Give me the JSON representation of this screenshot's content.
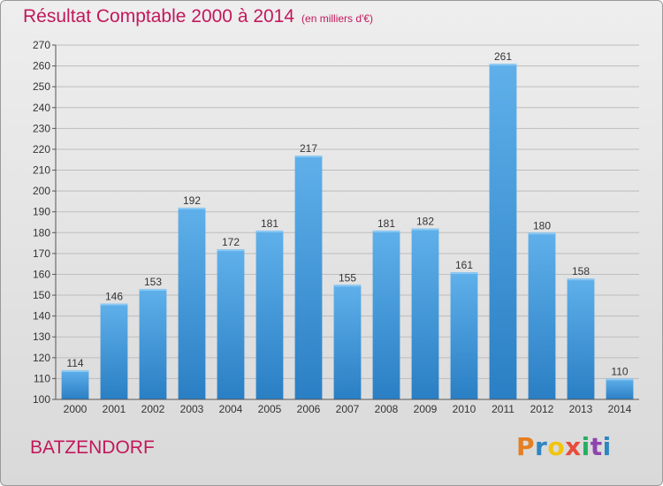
{
  "header": {
    "title": "Résultat Comptable 2000 à 2014",
    "subtitle": "(en milliers d'€)"
  },
  "footer": {
    "commune": "BATZENDORF",
    "logo_letters": [
      "P",
      "r",
      "o",
      "x",
      "i",
      "t",
      "i"
    ],
    "logo_colors": [
      "#e67e22",
      "#2e86c1",
      "#f1c40f",
      "#e74c3c",
      "#27ae60",
      "#8e44ad",
      "#2e86c1"
    ]
  },
  "colors": {
    "bar_top": "#5fb0ea",
    "bar_bottom": "#2a7fc4",
    "title": "#c2185b",
    "grid": "#bdbdbd",
    "text": "#333333"
  },
  "chart_data": {
    "type": "bar",
    "categories": [
      "2000",
      "2001",
      "2002",
      "2003",
      "2004",
      "2005",
      "2006",
      "2007",
      "2008",
      "2009",
      "2010",
      "2011",
      "2012",
      "2013",
      "2014"
    ],
    "values": [
      114,
      146,
      153,
      192,
      172,
      181,
      217,
      155,
      181,
      182,
      161,
      261,
      180,
      158,
      110
    ],
    "title": "Résultat Comptable 2000 à 2014",
    "xlabel": "",
    "ylabel": "",
    "ylim": [
      100,
      270
    ],
    "yticks": [
      100,
      110,
      120,
      130,
      140,
      150,
      160,
      170,
      180,
      190,
      200,
      210,
      220,
      230,
      240,
      250,
      260,
      270
    ],
    "grid": true,
    "data_labels": true
  }
}
